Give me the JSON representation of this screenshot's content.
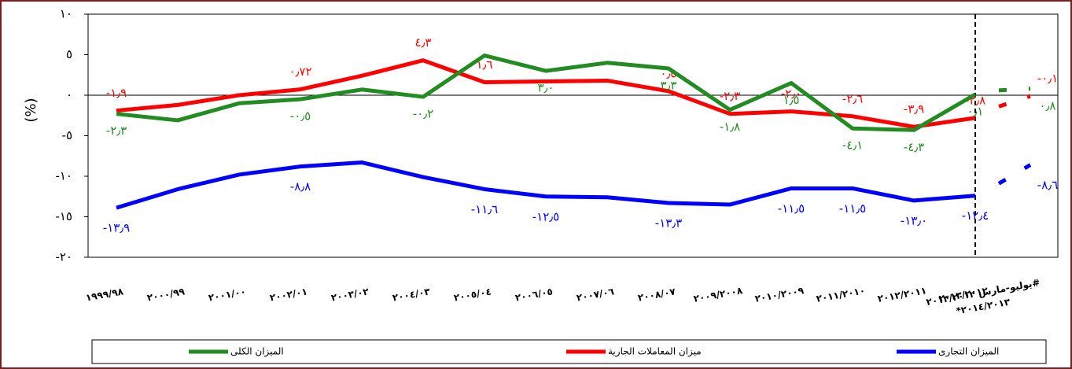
{
  "chart_data": {
    "type": "line",
    "y_label": "(%)",
    "categories": [
      "١٩٩٩/٩٨",
      "٢٠٠٠/٩٩",
      "٢٠٠١/٠٠",
      "٢٠٠٢/٠١",
      "٢٠٠٣/٠٢",
      "٢٠٠٤/٠٣",
      "٢٠٠٥/٠٤",
      "٢٠٠٦/٠٥",
      "٢٠٠٧/٠٦",
      "٢٠٠٨/٠٧",
      "٢٠٠٩/٢٠٠٨",
      "٢٠١٠/٢٠٠٩",
      "٢٠١١/٢٠١٠",
      "٢٠١٢/٢٠١١",
      "٢٠١٣/٢٠١٢",
      "يوليو-مارس ٢٠١٣/٢٠١٢#",
      "*٢٠١٤/٢٠١٣"
    ],
    "series": [
      {
        "name": "الميزان التجارى",
        "color": "#0000ff",
        "values": [
          -13.9,
          -11.6,
          -9.8,
          -8.8,
          -8.3,
          -10.1,
          -11.6,
          -12.5,
          -12.6,
          -13.3,
          -13.5,
          -11.5,
          -11.5,
          -13.0,
          -12.4,
          -10.9,
          -8.6
        ],
        "value_labels": [
          "-١٣٫٩",
          null,
          null,
          "-٨٫٨",
          null,
          null,
          "-١١٫٦",
          "-١٢٫٥",
          null,
          "-١٣٫٣",
          null,
          "-١١٫٥",
          "-١١٫٥",
          "-١٣٫٠",
          "-١٢٫٤",
          null,
          "-٨٫٦"
        ]
      },
      {
        "name": "ميزان المعاملات الجارية",
        "color": "#ff0000",
        "values": [
          -1.9,
          -1.2,
          0,
          0.72,
          2.4,
          4.3,
          1.6,
          1.7,
          1.8,
          0.5,
          -2.3,
          -2.0,
          -2.6,
          -3.9,
          -2.8,
          -1.4,
          -0.1
        ],
        "value_labels": [
          "-١٫٩",
          null,
          null,
          "٠٫٧٢",
          null,
          "٤٫٣",
          "١٫٦",
          null,
          null,
          "٠٫٥",
          "-٢٫٣",
          "-٢٫٠",
          "-٢٫٦",
          "-٣٫٩",
          "-٢٫٨",
          null,
          "-٠٫١"
        ]
      },
      {
        "name": "الميزان الكلى",
        "color": "#228b22",
        "values": [
          -2.3,
          -3.1,
          -1.0,
          -0.5,
          0.7,
          -0.2,
          4.9,
          3.0,
          4.0,
          3.3,
          -1.8,
          1.5,
          -4.1,
          -4.3,
          0.1,
          0.6,
          0.8
        ],
        "value_labels": [
          "-٢٫٣",
          null,
          null,
          "-٠٫٥",
          null,
          "-٠٫٢",
          null,
          "٣٫٠",
          null,
          "٣٫٣",
          "-١٫٨",
          "١٫٥",
          "-٤٫١",
          "-٤٫٣",
          "٠٫١",
          null,
          "٠٫٨"
        ]
      }
    ],
    "ylim": [
      -20,
      10
    ],
    "yticks": [
      {
        "value": -20,
        "label": "-٢٠"
      },
      {
        "value": -15,
        "label": "-١٥"
      },
      {
        "value": -10,
        "label": "-١٠"
      },
      {
        "value": -5,
        "label": "-٥"
      },
      {
        "value": 0,
        "label": "٠"
      },
      {
        "value": 5,
        "label": "٥"
      },
      {
        "value": 10,
        "label": "١٠"
      }
    ],
    "legend": "bottom"
  }
}
